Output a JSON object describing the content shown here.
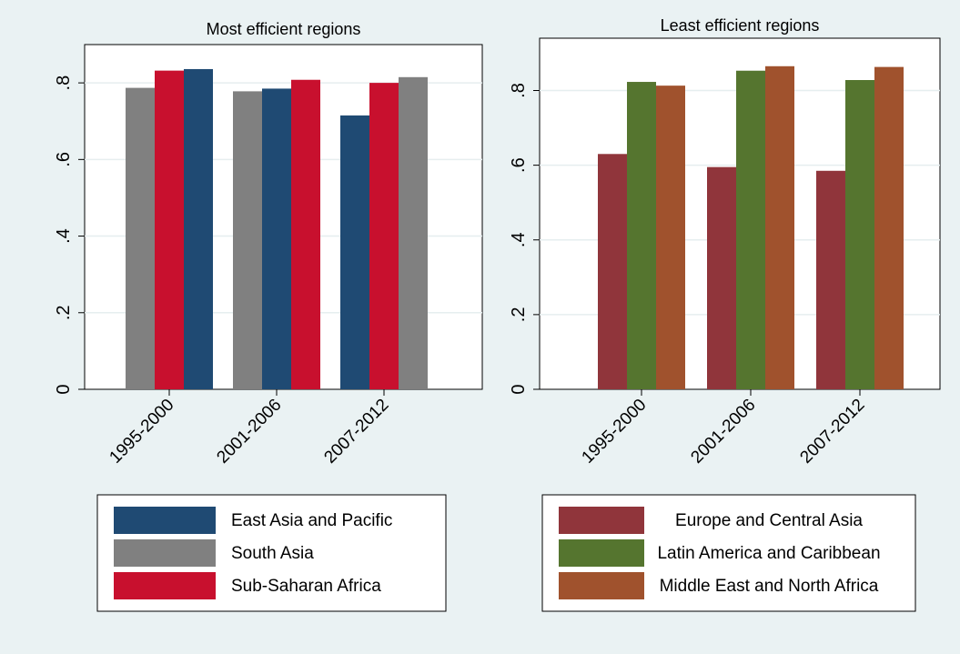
{
  "chart_data": [
    {
      "type": "bar",
      "title": "Most efficient regions",
      "categories": [
        "1995-2000",
        "2001-2006",
        "2007-2012"
      ],
      "ylim": [
        0,
        0.9
      ],
      "yticks": [
        {
          "value": 0,
          "label": "0"
        },
        {
          "value": 0.2,
          "label": ".2"
        },
        {
          "value": 0.4,
          "label": ".4"
        },
        {
          "value": 0.6,
          "label": ".6"
        },
        {
          "value": 0.8,
          "label": ".8"
        }
      ],
      "grid": true,
      "legend_position": "bottom",
      "legend": [
        {
          "name": "East Asia and Pacific",
          "color": "#1f4a73"
        },
        {
          "name": "South Asia",
          "color": "#808080"
        },
        {
          "name": "Sub-Saharan Africa",
          "color": "#c8102e"
        }
      ],
      "groups": [
        {
          "category": "1995-2000",
          "bars": [
            {
              "series": "South Asia",
              "value": 0.787
            },
            {
              "series": "Sub-Saharan Africa",
              "value": 0.832
            },
            {
              "series": "East Asia and Pacific",
              "value": 0.836
            }
          ]
        },
        {
          "category": "2001-2006",
          "bars": [
            {
              "series": "South Asia",
              "value": 0.778
            },
            {
              "series": "East Asia and Pacific",
              "value": 0.785
            },
            {
              "series": "Sub-Saharan Africa",
              "value": 0.808
            }
          ]
        },
        {
          "category": "2007-2012",
          "bars": [
            {
              "series": "East Asia and Pacific",
              "value": 0.715
            },
            {
              "series": "Sub-Saharan Africa",
              "value": 0.8
            },
            {
              "series": "South Asia",
              "value": 0.815
            }
          ]
        }
      ]
    },
    {
      "type": "bar",
      "title": "Least efficient regions",
      "categories": [
        "1995-2000",
        "2001-2006",
        "2007-2012"
      ],
      "ylim": [
        0,
        0.94
      ],
      "yticks": [
        {
          "value": 0,
          "label": "0"
        },
        {
          "value": 0.2,
          "label": ".2"
        },
        {
          "value": 0.4,
          "label": ".4"
        },
        {
          "value": 0.6,
          "label": ".6"
        },
        {
          "value": 0.8,
          "label": ".8"
        }
      ],
      "grid": true,
      "legend_position": "bottom",
      "legend": [
        {
          "name": "Europe and Central Asia",
          "color": "#90353b"
        },
        {
          "name": "Latin America and Caribbean",
          "color": "#55752f"
        },
        {
          "name": "Middle East and North Africa",
          "color": "#a0522d"
        }
      ],
      "groups": [
        {
          "category": "1995-2000",
          "bars": [
            {
              "series": "Europe and Central Asia",
              "value": 0.63
            },
            {
              "series": "Latin America and Caribbean",
              "value": 0.823
            },
            {
              "series": "Middle East and North Africa",
              "value": 0.813
            }
          ]
        },
        {
          "category": "2001-2006",
          "bars": [
            {
              "series": "Europe and Central Asia",
              "value": 0.595
            },
            {
              "series": "Latin America and Caribbean",
              "value": 0.853
            },
            {
              "series": "Middle East and North Africa",
              "value": 0.865
            }
          ]
        },
        {
          "category": "2007-2012",
          "bars": [
            {
              "series": "Europe and Central Asia",
              "value": 0.585
            },
            {
              "series": "Latin America and Caribbean",
              "value": 0.828
            },
            {
              "series": "Middle East and North Africa",
              "value": 0.863
            }
          ]
        }
      ]
    }
  ]
}
